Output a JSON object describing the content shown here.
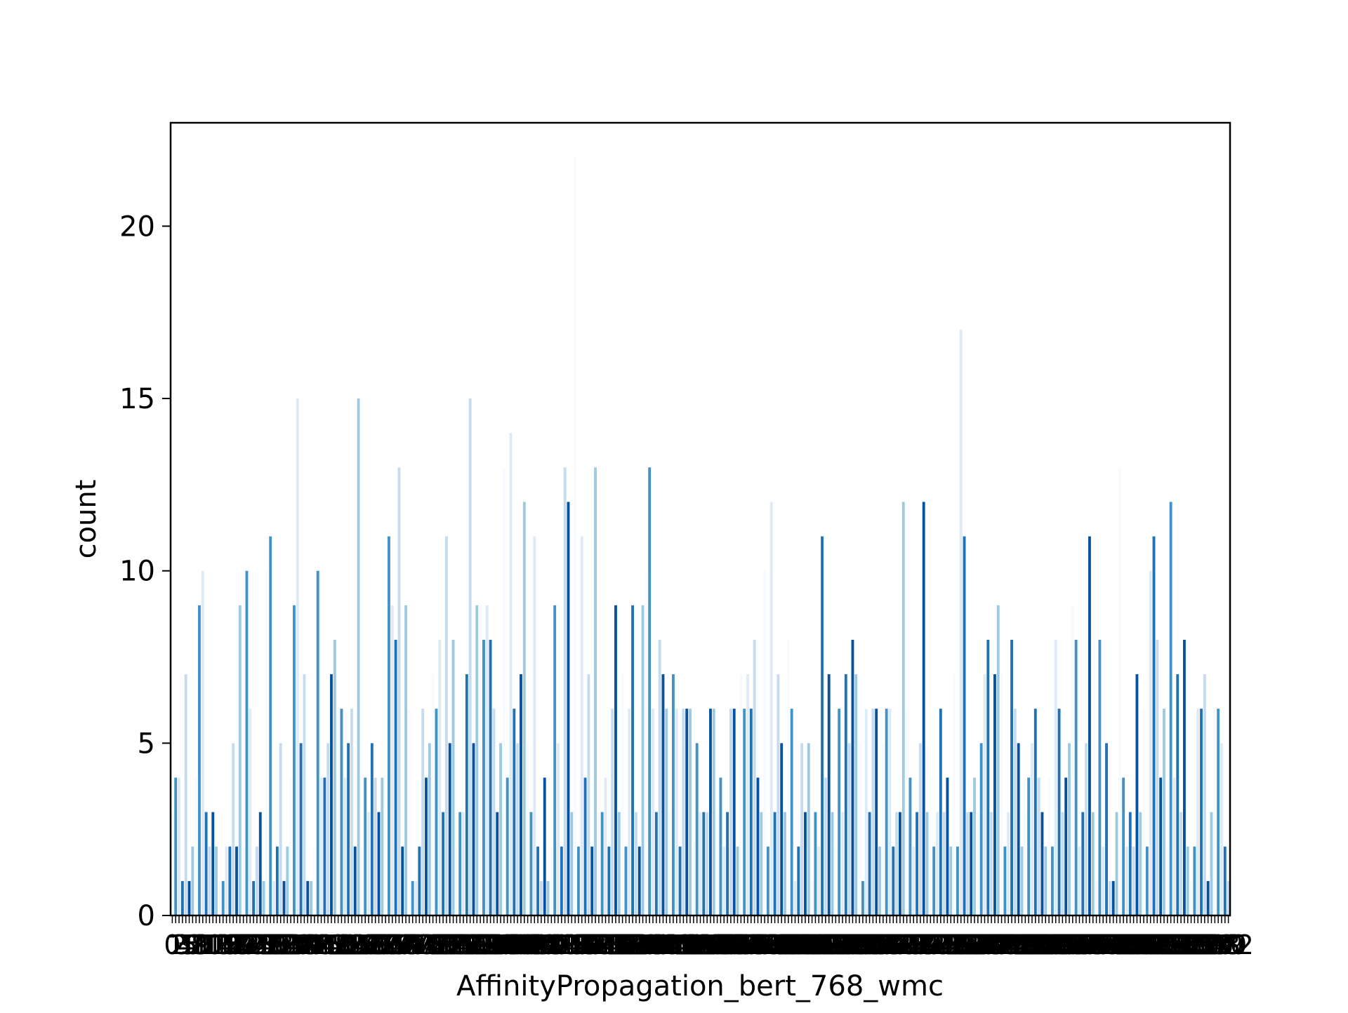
{
  "chart_data": {
    "type": "bar",
    "title": "",
    "xlabel": "AffinityPropagation_bert_768_wmc",
    "ylabel": "count",
    "ylim": [
      0,
      23
    ],
    "yticks": [
      0,
      5,
      10,
      15,
      20
    ],
    "grid": false,
    "legend": "none",
    "palette": "Blues",
    "palette_colors": [
      "#f7fbff",
      "#deebf7",
      "#c6dbef",
      "#9ecae1",
      "#6baed6",
      "#4292c6",
      "#2171b5",
      "#08519c",
      "#08306b"
    ],
    "note_categories": "x categories are cluster ids 0..N-1; tick labels overlap into an illegible black band",
    "values": [
      3,
      4,
      4,
      1,
      7,
      1,
      2,
      4,
      9,
      10,
      3,
      2,
      3,
      2,
      1,
      1,
      2,
      2,
      5,
      2,
      9,
      2,
      10,
      6,
      1,
      2,
      3,
      1,
      10,
      11,
      1,
      2,
      5,
      1,
      2,
      4,
      9,
      15,
      5,
      7,
      1,
      1,
      2,
      10,
      4,
      4,
      5,
      7,
      8,
      6,
      6,
      4,
      5,
      6,
      2,
      15,
      2,
      4,
      3,
      5,
      4,
      3,
      4,
      3,
      11,
      9,
      8,
      13,
      2,
      9,
      6,
      1,
      1,
      2,
      6,
      4,
      5,
      7,
      6,
      8,
      3,
      11,
      5,
      8,
      2,
      3,
      3,
      7,
      15,
      5,
      9,
      9,
      8,
      9,
      8,
      6,
      3,
      5,
      13,
      4,
      14,
      6,
      5,
      7,
      12,
      5,
      3,
      11,
      2,
      1,
      4,
      1,
      2,
      9,
      5,
      2,
      13,
      12,
      3,
      22,
      2,
      11,
      4,
      7,
      2,
      13,
      3,
      3,
      4,
      2,
      6,
      9,
      3,
      7,
      2,
      6,
      9,
      3,
      2,
      9,
      10,
      13,
      6,
      3,
      8,
      7,
      6,
      3,
      7,
      6,
      2,
      6,
      6,
      6,
      2,
      5,
      3,
      3,
      3,
      6,
      6,
      3,
      4,
      2,
      3,
      6,
      6,
      2,
      7,
      6,
      7,
      6,
      8,
      4,
      3,
      10,
      2,
      12,
      3,
      7,
      5,
      3,
      8,
      6,
      1,
      2,
      5,
      3,
      5,
      1,
      3,
      2,
      11,
      4,
      7,
      3,
      2,
      6,
      3,
      7,
      5,
      8,
      7,
      5,
      1,
      6,
      3,
      6,
      6,
      2,
      5,
      6,
      6,
      2,
      3,
      3,
      12,
      6,
      4,
      2,
      3,
      5,
      12,
      3,
      4,
      2,
      3,
      6,
      3,
      4,
      2,
      7,
      2,
      17,
      11,
      3,
      3,
      4,
      3,
      5,
      7,
      8,
      3,
      7,
      9,
      7,
      2,
      3,
      8,
      6,
      5,
      2,
      3,
      4,
      5,
      6,
      4,
      3,
      2,
      4,
      2,
      8,
      6,
      3,
      4,
      5,
      9,
      8,
      2,
      3,
      5,
      11,
      3,
      1,
      8,
      2,
      5,
      1,
      1,
      3,
      13,
      4,
      2,
      3,
      2,
      7,
      3,
      6,
      2,
      10,
      11,
      8,
      4,
      6,
      2,
      12,
      4,
      7,
      3,
      8,
      2,
      1,
      2,
      6,
      6,
      7,
      1,
      3,
      6,
      6,
      5,
      2,
      1
    ]
  }
}
